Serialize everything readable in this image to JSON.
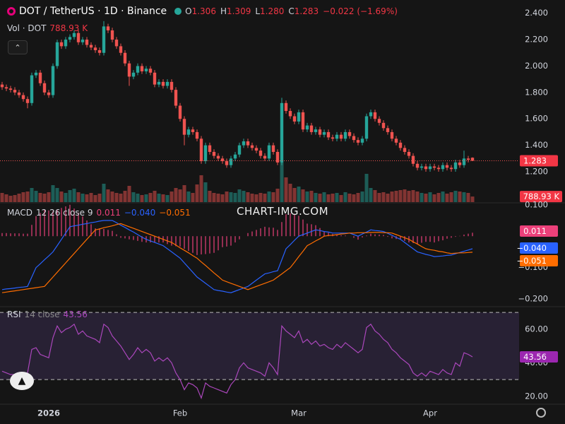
{
  "chart_data": [
    {
      "type": "candlestick",
      "title": "DOT / TetherUS · 1D · Binance",
      "ohlc_labels": [
        {
          "key": "O",
          "label": "1.306"
        },
        {
          "key": "H",
          "label": "1.309"
        },
        {
          "key": "L",
          "label": "1.280"
        },
        {
          "key": "C",
          "label": "1.283"
        }
      ],
      "change_label": "−0.022 (−1.69%)",
      "watermark": "CHART-IMG.COM",
      "up_color": "#26a69a",
      "down_color": "#ef5350",
      "xlim": [
        -0.5,
        122
      ],
      "xticks": [
        {
          "value": 11,
          "label": "2026"
        },
        {
          "value": 42,
          "label": "Feb"
        },
        {
          "value": 70,
          "label": "Mar"
        },
        {
          "value": 101,
          "label": "Apr"
        }
      ],
      "ylim": [
        0.97,
        2.5
      ],
      "yticks": [
        {
          "value": 1.2,
          "label": "1.200"
        },
        {
          "value": 1.4,
          "label": "1.400"
        },
        {
          "value": 1.6,
          "label": "1.600"
        },
        {
          "value": 1.8,
          "label": "1.800"
        },
        {
          "value": 2,
          "label": "2.000"
        },
        {
          "value": 2.2,
          "label": "2.200"
        },
        {
          "value": 2.4,
          "label": "2.400"
        }
      ],
      "open": [
        1.86,
        1.84,
        1.83,
        1.82,
        1.8,
        1.78,
        1.75,
        1.72,
        1.93,
        1.95,
        1.87,
        1.8,
        1.78,
        2.0,
        2.18,
        2.15,
        2.2,
        2.22,
        2.25,
        2.18,
        2.2,
        2.16,
        2.14,
        2.12,
        2.1,
        2.3,
        2.27,
        2.2,
        2.15,
        2.1,
        2.02,
        1.92,
        1.95,
        2.0,
        1.96,
        1.98,
        1.95,
        1.86,
        1.88,
        1.85,
        1.88,
        1.82,
        1.7,
        1.6,
        1.48,
        1.52,
        1.5,
        1.45,
        1.28,
        1.4,
        1.35,
        1.32,
        1.3,
        1.28,
        1.25,
        1.3,
        1.33,
        1.4,
        1.43,
        1.4,
        1.38,
        1.36,
        1.32,
        1.3,
        1.4,
        1.35,
        1.27,
        1.72,
        1.66,
        1.62,
        1.58,
        1.65,
        1.52,
        1.55,
        1.5,
        1.52,
        1.48,
        1.5,
        1.46,
        1.45,
        1.48,
        1.45,
        1.5,
        1.47,
        1.44,
        1.42,
        1.45,
        1.62,
        1.65,
        1.6,
        1.57,
        1.53,
        1.5,
        1.45,
        1.42,
        1.38,
        1.35,
        1.32,
        1.26,
        1.23,
        1.24,
        1.22,
        1.24,
        1.23,
        1.22,
        1.25,
        1.23,
        1.22,
        1.27,
        1.25,
        1.3,
        1.306
      ],
      "high": [
        1.88,
        1.86,
        1.85,
        1.84,
        1.82,
        1.8,
        1.77,
        1.95,
        1.97,
        1.97,
        1.89,
        1.82,
        2.02,
        2.2,
        2.2,
        2.22,
        2.24,
        2.27,
        2.27,
        2.22,
        2.22,
        2.18,
        2.16,
        2.14,
        2.34,
        2.32,
        2.29,
        2.22,
        2.17,
        2.12,
        2.04,
        1.97,
        2.02,
        2.02,
        2.0,
        2.0,
        1.97,
        1.9,
        1.9,
        1.9,
        1.9,
        1.84,
        1.72,
        1.62,
        1.54,
        1.54,
        1.52,
        1.47,
        1.42,
        1.42,
        1.37,
        1.34,
        1.32,
        1.3,
        1.32,
        1.35,
        1.42,
        1.45,
        1.45,
        1.42,
        1.4,
        1.38,
        1.34,
        1.42,
        1.42,
        1.37,
        1.76,
        1.74,
        1.68,
        1.64,
        1.67,
        1.67,
        1.57,
        1.57,
        1.54,
        1.54,
        1.52,
        1.52,
        1.48,
        1.5,
        1.5,
        1.52,
        1.52,
        1.49,
        1.46,
        1.47,
        1.64,
        1.67,
        1.67,
        1.62,
        1.59,
        1.55,
        1.52,
        1.47,
        1.44,
        1.4,
        1.37,
        1.34,
        1.28,
        1.26,
        1.26,
        1.26,
        1.26,
        1.25,
        1.27,
        1.27,
        1.25,
        1.29,
        1.29,
        1.36,
        1.32,
        1.309
      ],
      "low": [
        1.82,
        1.81,
        1.8,
        1.78,
        1.76,
        1.73,
        1.68,
        1.7,
        1.91,
        1.85,
        1.78,
        1.76,
        1.76,
        1.98,
        2.13,
        2.13,
        2.18,
        2.2,
        2.16,
        2.16,
        2.14,
        2.12,
        2.1,
        2.08,
        2.08,
        2.25,
        2.18,
        2.13,
        2.08,
        2.0,
        1.85,
        1.9,
        1.93,
        1.94,
        1.94,
        1.93,
        1.84,
        1.84,
        1.83,
        1.83,
        1.8,
        1.68,
        1.58,
        1.4,
        1.46,
        1.48,
        1.43,
        1.26,
        1.26,
        1.33,
        1.3,
        1.28,
        1.26,
        1.23,
        1.23,
        1.28,
        1.31,
        1.38,
        1.38,
        1.36,
        1.34,
        1.3,
        1.28,
        1.28,
        1.33,
        1.25,
        1.25,
        1.64,
        1.6,
        1.56,
        1.56,
        1.5,
        1.5,
        1.48,
        1.48,
        1.46,
        1.46,
        1.44,
        1.43,
        1.43,
        1.43,
        1.43,
        1.45,
        1.42,
        1.4,
        1.4,
        1.43,
        1.6,
        1.58,
        1.55,
        1.51,
        1.48,
        1.43,
        1.4,
        1.36,
        1.33,
        1.3,
        1.24,
        1.21,
        1.21,
        1.2,
        1.2,
        1.21,
        1.2,
        1.2,
        1.21,
        1.2,
        1.2,
        1.23,
        1.23,
        1.27,
        1.28
      ],
      "close": [
        1.84,
        1.83,
        1.82,
        1.8,
        1.78,
        1.75,
        1.72,
        1.93,
        1.95,
        1.87,
        1.8,
        1.78,
        2.0,
        2.18,
        2.15,
        2.2,
        2.22,
        2.25,
        2.18,
        2.2,
        2.16,
        2.14,
        2.12,
        2.1,
        2.3,
        2.27,
        2.2,
        2.15,
        2.1,
        2.02,
        1.92,
        1.95,
        2.0,
        1.96,
        1.98,
        1.95,
        1.86,
        1.88,
        1.85,
        1.88,
        1.82,
        1.7,
        1.6,
        1.48,
        1.52,
        1.5,
        1.45,
        1.28,
        1.4,
        1.35,
        1.32,
        1.3,
        1.28,
        1.25,
        1.3,
        1.33,
        1.4,
        1.43,
        1.4,
        1.38,
        1.36,
        1.32,
        1.3,
        1.4,
        1.35,
        1.27,
        1.72,
        1.66,
        1.62,
        1.58,
        1.65,
        1.52,
        1.55,
        1.5,
        1.52,
        1.48,
        1.5,
        1.46,
        1.45,
        1.48,
        1.45,
        1.5,
        1.47,
        1.44,
        1.42,
        1.45,
        1.62,
        1.65,
        1.6,
        1.57,
        1.53,
        1.5,
        1.45,
        1.42,
        1.38,
        1.35,
        1.32,
        1.26,
        1.23,
        1.24,
        1.22,
        1.24,
        1.23,
        1.22,
        1.25,
        1.23,
        1.22,
        1.27,
        1.25,
        1.3,
        1.29,
        1.283
      ]
    },
    {
      "type": "bar",
      "title": "Vol · DOT",
      "value_label": "788.93 K",
      "ylim": [
        0,
        6000
      ],
      "values": [
        1300,
        1100,
        900,
        1000,
        1200,
        1400,
        1500,
        2000,
        1600,
        1300,
        1200,
        1400,
        2400,
        2000,
        1500,
        1300,
        1700,
        1900,
        1400,
        1200,
        1100,
        1300,
        1000,
        1200,
        2600,
        1800,
        1500,
        1300,
        1200,
        1600,
        2300,
        1400,
        1200,
        1000,
        1100,
        1300,
        1600,
        1200,
        1100,
        1000,
        1500,
        2000,
        1800,
        2400,
        1500,
        1300,
        2500,
        3800,
        2800,
        1600,
        1300,
        1200,
        1100,
        1500,
        1400,
        1300,
        1800,
        1600,
        1400,
        1200,
        1100,
        1300,
        1200,
        1500,
        1400,
        1900,
        5600,
        3500,
        2600,
        2000,
        2200,
        1800,
        1500,
        1600,
        1300,
        1200,
        1400,
        1100,
        1200,
        1300,
        1000,
        1400,
        1200,
        1100,
        1300,
        1500,
        4000,
        2000,
        1700,
        1300,
        1400,
        1200,
        1500,
        1600,
        1700,
        1800,
        1600,
        1700,
        1500,
        1300,
        1200,
        1400,
        1100,
        1300,
        1500,
        1200,
        1400,
        1600,
        1500,
        1400,
        1300,
        788.93
      ]
    },
    {
      "type": "macd",
      "title": "MACD",
      "params": "12 26 close 9",
      "ylim": [
        -0.22,
        0.104
      ],
      "yticks": [
        {
          "value": 0.1,
          "label": "0.100"
        },
        {
          "value": -0.1,
          "label": "−0.100"
        },
        {
          "value": -0.2,
          "label": "−0.200"
        }
      ],
      "series": [
        {
          "kind": "histogram",
          "color": "#ec407a",
          "value_label": "0.011",
          "values": [
            0.01,
            0.01,
            0.009,
            0.009,
            0.009,
            0.008,
            0.008,
            0.036,
            0.064,
            0.074,
            0.085,
            0.082,
            0.08,
            0.085,
            0.09,
            0.095,
            0.1,
            0.088,
            0.075,
            0.063,
            0.05,
            0.038,
            0.025,
            0.025,
            0.023,
            0.02,
            0.017,
            0.006,
            -0.005,
            -0.007,
            -0.01,
            -0.012,
            -0.015,
            -0.018,
            -0.02,
            -0.02,
            -0.02,
            -0.02,
            -0.02,
            -0.025,
            -0.03,
            -0.032,
            -0.033,
            -0.04,
            -0.047,
            -0.053,
            -0.06,
            -0.058,
            -0.057,
            -0.055,
            -0.053,
            -0.045,
            -0.035,
            -0.033,
            -0.03,
            -0.02,
            -0.01,
            0,
            0.01,
            0.015,
            0.02,
            0.025,
            0.03,
            0.028,
            0.027,
            0.02,
            0.045,
            0.07,
            0.073,
            0.07,
            0.065,
            0.053,
            0.04,
            0.038,
            0.035,
            0.026,
            0.015,
            0.011,
            0.007,
            0.005,
            0.003,
            0.002,
            0,
            -0.005,
            -0.011,
            -0.004,
            0.002,
            0.008,
            0.006,
            0.005,
            0.004,
            -0.002,
            -0.007,
            -0.009,
            -0.01,
            -0.015,
            -0.02,
            -0.022,
            -0.025,
            -0.021,
            -0.018,
            -0.018,
            -0.02,
            -0.016,
            -0.013,
            -0.008,
            -0.005,
            -0.002,
            0.001,
            0.005,
            0.008,
            0.011
          ]
        },
        {
          "kind": "line",
          "color": "#2962ff",
          "value_label": "−0.040",
          "values": [
            -0.17,
            -0.168,
            -0.167,
            -0.165,
            -0.163,
            -0.162,
            -0.16,
            -0.13,
            -0.1,
            -0.088,
            -0.075,
            -0.063,
            -0.05,
            -0.03,
            -0.01,
            0.01,
            0.03,
            0.033,
            0.035,
            0.038,
            0.04,
            0.043,
            0.045,
            0.048,
            0.05,
            0.05,
            0.05,
            0.043,
            0.035,
            0.028,
            0.02,
            0.013,
            0.005,
            -0.003,
            -0.01,
            -0.015,
            -0.02,
            -0.025,
            -0.03,
            -0.04,
            -0.05,
            -0.06,
            -0.07,
            -0.085,
            -0.1,
            -0.115,
            -0.13,
            -0.14,
            -0.15,
            -0.16,
            -0.17,
            -0.173,
            -0.175,
            -0.178,
            -0.18,
            -0.175,
            -0.17,
            -0.165,
            -0.16,
            -0.15,
            -0.14,
            -0.13,
            -0.12,
            -0.117,
            -0.113,
            -0.11,
            -0.075,
            -0.04,
            -0.027,
            -0.013,
            0,
            0.005,
            0.01,
            0.015,
            0.02,
            0.018,
            0.015,
            0.013,
            0.01,
            0.01,
            0.01,
            0.01,
            0.01,
            0.005,
            0,
            0.007,
            0.013,
            0.02,
            0.018,
            0.017,
            0.015,
            0.009,
            0.003,
            -0.004,
            -0.01,
            -0.02,
            -0.03,
            -0.04,
            -0.05,
            -0.054,
            -0.058,
            -0.061,
            -0.065,
            -0.064,
            -0.063,
            -0.061,
            -0.06,
            -0.056,
            -0.052,
            -0.048,
            -0.044,
            -0.04
          ]
        },
        {
          "kind": "line",
          "color": "#ff6d00",
          "value_label": "−0.051",
          "values": [
            -0.18,
            -0.178,
            -0.176,
            -0.174,
            -0.172,
            -0.17,
            -0.168,
            -0.166,
            -0.164,
            -0.162,
            -0.16,
            -0.145,
            -0.13,
            -0.115,
            -0.1,
            -0.085,
            -0.07,
            -0.055,
            -0.04,
            -0.025,
            -0.01,
            0.005,
            0.02,
            0.023,
            0.027,
            0.03,
            0.033,
            0.037,
            0.04,
            0.035,
            0.03,
            0.025,
            0.02,
            0.015,
            0.01,
            0.005,
            0,
            -0.005,
            -0.01,
            -0.015,
            -0.02,
            -0.028,
            -0.037,
            -0.045,
            -0.053,
            -0.062,
            -0.07,
            -0.082,
            -0.093,
            -0.105,
            -0.117,
            -0.128,
            -0.14,
            -0.145,
            -0.15,
            -0.155,
            -0.16,
            -0.165,
            -0.17,
            -0.165,
            -0.16,
            -0.155,
            -0.15,
            -0.145,
            -0.14,
            -0.13,
            -0.12,
            -0.11,
            -0.1,
            -0.083,
            -0.065,
            -0.048,
            -0.03,
            -0.023,
            -0.015,
            -0.008,
            0,
            0.002,
            0.003,
            0.005,
            0.007,
            0.008,
            0.01,
            0.01,
            0.011,
            0.011,
            0.011,
            0.012,
            0.012,
            0.012,
            0.011,
            0.011,
            0.01,
            0.005,
            0,
            -0.005,
            -0.01,
            -0.018,
            -0.025,
            -0.033,
            -0.04,
            -0.043,
            -0.045,
            -0.048,
            -0.05,
            -0.053,
            -0.055,
            -0.054,
            -0.053,
            -0.053,
            -0.052,
            -0.051
          ]
        }
      ]
    },
    {
      "type": "line",
      "title": "RSI",
      "params": "14 close",
      "color": "#ab47bc",
      "ylim": [
        12.8,
        72.6
      ],
      "bands": [
        30,
        70
      ],
      "yticks": [
        {
          "value": 20,
          "label": "20.00"
        },
        {
          "value": 40,
          "label": "40.00"
        },
        {
          "value": 60,
          "label": "60.00"
        }
      ],
      "values": [
        35,
        34,
        33,
        33,
        32,
        31,
        34,
        48,
        49,
        45,
        44,
        43,
        55,
        62,
        58,
        60,
        61,
        63,
        57,
        59,
        56,
        55,
        54,
        52,
        63,
        61,
        56,
        53,
        50,
        46,
        42,
        45,
        49,
        46,
        48,
        46,
        41,
        43,
        41,
        43,
        40,
        34,
        30,
        24,
        28,
        27,
        25,
        19,
        28,
        26,
        25,
        24,
        23,
        22,
        27,
        30,
        37,
        40,
        37,
        36,
        35,
        34,
        32,
        40,
        37,
        33,
        62,
        59,
        57,
        55,
        59,
        52,
        54,
        51,
        53,
        50,
        51,
        49,
        48,
        51,
        49,
        52,
        50,
        48,
        46,
        48,
        61,
        63,
        59,
        57,
        54,
        52,
        48,
        46,
        43,
        41,
        39,
        34,
        32,
        34,
        32,
        35,
        34,
        33,
        36,
        34,
        33,
        40,
        38,
        46,
        45,
        43.56
      ]
    }
  ]
}
